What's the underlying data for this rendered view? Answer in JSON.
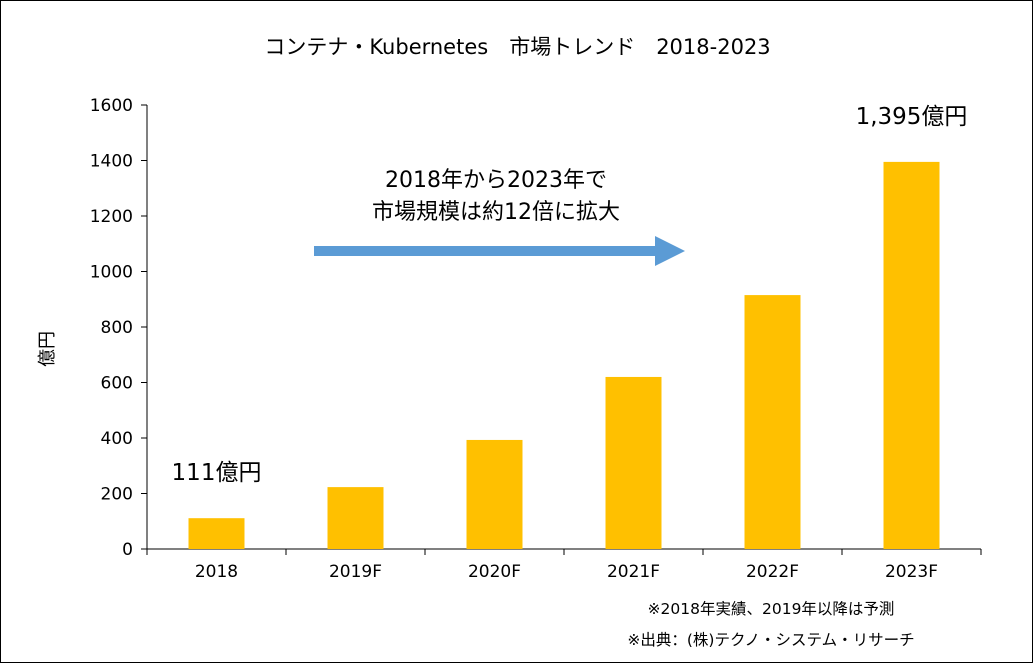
{
  "chart_data": {
    "type": "bar",
    "title": "コンテナ・Kubernetes　市場トレンド　2018-2023",
    "ylabel": "億円",
    "xlabel": "",
    "categories": [
      "2018",
      "2019F",
      "2020F",
      "2021F",
      "2022F",
      "2023F"
    ],
    "values": [
      111,
      223,
      393,
      620,
      915,
      1395
    ],
    "ylim": [
      0,
      1600
    ],
    "yticks": [
      0,
      200,
      400,
      600,
      800,
      1000,
      1200,
      1400,
      1600
    ],
    "grid": false,
    "bar_color": "#FFC000",
    "data_labels": [
      {
        "category": "2018",
        "text": "111億円"
      },
      {
        "category": "2023F",
        "text": "1,395億円"
      }
    ],
    "annotation": {
      "line1": "2018年から2023年で",
      "line2": "市場規模は約12倍に拡大",
      "arrow_color": "#5B9BD5"
    }
  },
  "notes": {
    "line1": "※2018年実績、2019年以降は予測",
    "line2": "※出典：(株)テクノ・システム・リサーチ"
  }
}
